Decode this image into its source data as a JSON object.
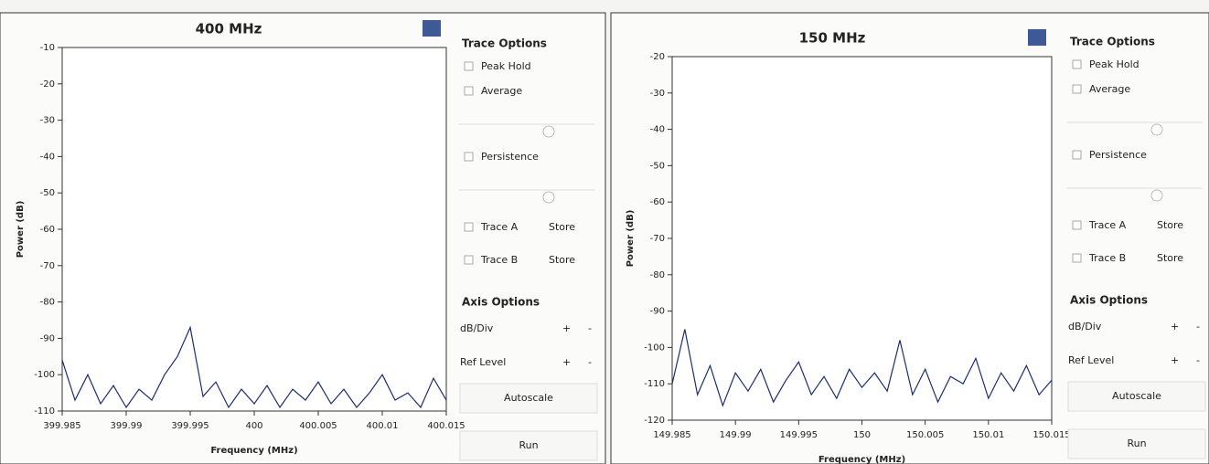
{
  "chart_data": [
    {
      "type": "line",
      "title": "400 MHz",
      "xlabel": "Frequency (MHz)",
      "ylabel": "Power (dB)",
      "x": [
        399.985,
        399.986,
        399.987,
        399.988,
        399.989,
        399.99,
        399.991,
        399.992,
        399.993,
        399.994,
        399.995,
        399.996,
        399.997,
        399.998,
        399.999,
        400,
        400.001,
        400.002,
        400.003,
        400.004,
        400.005,
        400.006,
        400.007,
        400.008,
        400.009,
        400.01,
        400.011,
        400.012,
        400.013,
        400.014,
        400.015
      ],
      "series": [
        {
          "color": "#1e2d6e",
          "values": [
            -96,
            -107,
            -100,
            -108,
            -103,
            -109,
            -104,
            -107,
            -100,
            -95,
            -87,
            -106,
            -102,
            -109,
            -104,
            -108,
            -103,
            -109,
            -104,
            -107,
            -102,
            -108,
            -104,
            -109,
            -105,
            -100,
            -107,
            -105,
            -109,
            -101,
            -107
          ]
        }
      ],
      "xlim": [
        399.985,
        400.015
      ],
      "ylim": [
        -110,
        -10
      ],
      "xticks": [
        399.985,
        399.99,
        399.995,
        400,
        400.005,
        400.01,
        400.015
      ],
      "yticks": [
        -110,
        -100,
        -90,
        -80,
        -70,
        -60,
        -50,
        -40,
        -30,
        -20,
        -10
      ]
    },
    {
      "type": "line",
      "title": "150 MHz",
      "xlabel": "Frequency (MHz)",
      "ylabel": "Power (dB)",
      "x": [
        149.985,
        149.986,
        149.987,
        149.988,
        149.989,
        149.99,
        149.991,
        149.992,
        149.993,
        149.994,
        149.995,
        149.996,
        149.997,
        149.998,
        149.999,
        150,
        150.001,
        150.002,
        150.003,
        150.004,
        150.005,
        150.006,
        150.007,
        150.008,
        150.009,
        150.01,
        150.011,
        150.012,
        150.013,
        150.014,
        150.015
      ],
      "series": [
        {
          "color": "#1e2d6e",
          "values": [
            -110,
            -95,
            -113,
            -105,
            -116,
            -107,
            -112,
            -106,
            -115,
            -109,
            -104,
            -113,
            -108,
            -114,
            -106,
            -111,
            -107,
            -112,
            -98,
            -113,
            -106,
            -115,
            -108,
            -110,
            -103,
            -114,
            -107,
            -112,
            -105,
            -113,
            -109
          ]
        }
      ],
      "xlim": [
        149.985,
        150.015
      ],
      "ylim": [
        -120,
        -20
      ],
      "xticks": [
        149.985,
        149.99,
        149.995,
        150,
        150.005,
        150.01,
        150.015
      ],
      "yticks": [
        -120,
        -110,
        -100,
        -90,
        -80,
        -70,
        -60,
        -50,
        -40,
        -30,
        -20
      ]
    }
  ],
  "panels": [
    {
      "trace_options": "Trace Options",
      "peak_hold": "Peak Hold",
      "average": "Average",
      "persistence": "Persistence",
      "trace_a": "Trace A",
      "store_a": "Store",
      "trace_b": "Trace B",
      "store_b": "Store",
      "axis_options": "Axis Options",
      "db_div": "dB/Div",
      "db_plus": "+",
      "db_minus": "-",
      "ref_level": "Ref Level",
      "ref_plus": "+",
      "ref_minus": "-",
      "autoscale": "Autoscale",
      "run": "Run"
    },
    {
      "trace_options": "Trace Options",
      "peak_hold": "Peak Hold",
      "average": "Average",
      "persistence": "Persistence",
      "trace_a": "Trace A",
      "store_a": "Store",
      "trace_b": "Trace B",
      "store_b": "Store",
      "axis_options": "Axis Options",
      "db_div": "dB/Div",
      "db_plus": "+",
      "db_minus": "-",
      "ref_level": "Ref Level",
      "ref_plus": "+",
      "ref_minus": "-",
      "autoscale": "Autoscale",
      "run": "Run"
    }
  ]
}
